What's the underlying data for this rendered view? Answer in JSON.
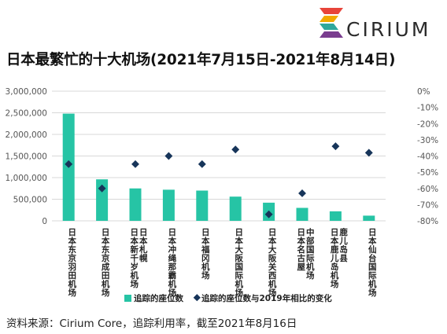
{
  "brand": {
    "logo_text": "CIRIUM",
    "logo_colors": [
      "#e8443a",
      "#f2a900",
      "#2fa89c",
      "#7a3d8f"
    ]
  },
  "title": "日本最繁忙的十大机场(2021年7月15日-2021年8月14日)",
  "source": "资料来源：Cirium Core，追踪利用率，截至2021年8月16日",
  "colors": {
    "bar": "#26c4a5",
    "marker": "#17355a",
    "grid": "#d8d8d8",
    "axis_text": "#555555"
  },
  "chart_data": {
    "type": "bar",
    "categories": [
      "日本东京羽田机场",
      "日本东京成田机场",
      "日本新千岁机场\n日本札幌",
      "日本冲绳那霸机场",
      "日本福冈机场",
      "日本大阪国际机场",
      "日本大阪关西机场",
      "日本名古屋\n中部国际机场",
      "日本鹿儿岛机场\n鹿儿岛县",
      "日本仙台国际机场"
    ],
    "series": [
      {
        "name": "追踪的座位数",
        "type": "bar",
        "axis": "left",
        "values": [
          2480000,
          960000,
          750000,
          720000,
          700000,
          560000,
          420000,
          300000,
          220000,
          120000
        ]
      },
      {
        "name": "追踪的座位数与2019年相比的变化",
        "type": "scatter",
        "axis": "right",
        "values": [
          -45,
          -60,
          -45,
          -40,
          -45,
          -36,
          -76,
          -63,
          -34,
          -38
        ]
      }
    ],
    "left_axis": {
      "min": 0,
      "max": 3000000,
      "step": 500000,
      "tick_labels": [
        "0",
        "500,000",
        "1,000,000",
        "1,500,000",
        "2,000,000",
        "2,500,000",
        "3,000,000"
      ]
    },
    "right_axis": {
      "min": -80,
      "max": 0,
      "step": 10,
      "tick_labels": [
        "0%",
        "-10%",
        "-20%",
        "-30%",
        "-40%",
        "-50%",
        "-60%",
        "-70%",
        "-80%"
      ]
    },
    "grid": true,
    "legend_position": "bottom"
  }
}
